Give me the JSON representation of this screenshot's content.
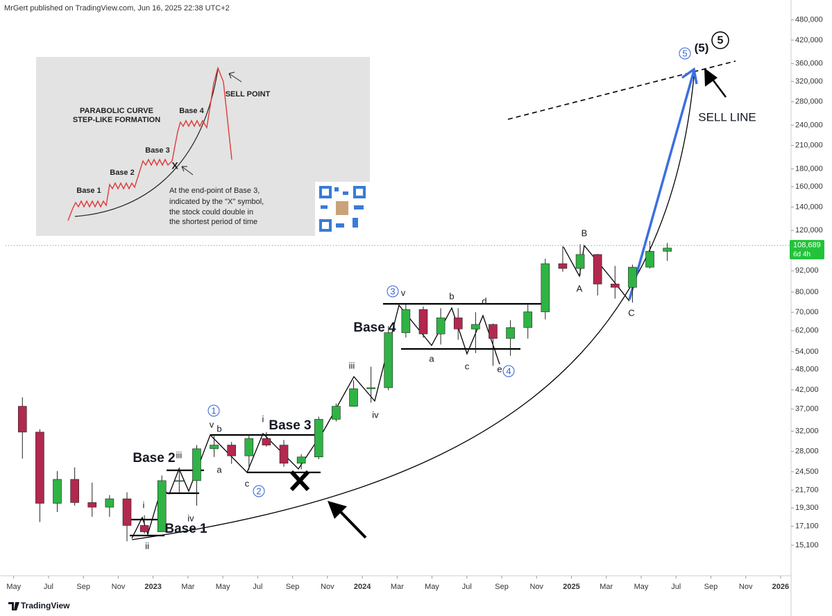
{
  "header": "MrGert published on TradingView.com, Jun 16, 2025 22:38 UTC+2",
  "footer": "TradingView",
  "chart_data": {
    "type": "candlestick",
    "log_scale": true,
    "grid": false,
    "up_color": "#2fb344",
    "down_color": "#b2284e",
    "x": [
      "2022-05",
      "2022-06",
      "2022-07",
      "2022-08",
      "2022-09",
      "2022-10",
      "2022-11",
      "2022-12",
      "2023-01",
      "2023-02",
      "2023-03",
      "2023-04",
      "2023-05",
      "2023-06",
      "2023-07",
      "2023-08",
      "2023-09",
      "2023-10",
      "2023-11",
      "2023-12",
      "2024-01",
      "2024-02",
      "2024-03",
      "2024-04",
      "2024-05",
      "2024-06",
      "2024-07",
      "2024-08",
      "2024-09",
      "2024-10",
      "2024-11",
      "2024-12",
      "2025-01",
      "2025-02",
      "2025-03",
      "2025-04",
      "2025-05",
      "2025-06"
    ],
    "open": [
      37700,
      31800,
      19900,
      23300,
      20000,
      19400,
      20500,
      17200,
      16500,
      23100,
      23100,
      28500,
      29200,
      27200,
      30500,
      29200,
      25900,
      27000,
      34600,
      37700,
      42300,
      42600,
      61200,
      71300,
      60700,
      67500,
      62700,
      64600,
      58900,
      63300,
      70200,
      96400,
      93400,
      102400,
      84300,
      82500,
      94200,
      104600
    ],
    "high": [
      40000,
      32400,
      24600,
      25200,
      22800,
      21000,
      21400,
      18400,
      23900,
      25200,
      29200,
      31000,
      29800,
      31400,
      31800,
      30200,
      27500,
      35200,
      38400,
      44700,
      48900,
      63900,
      73800,
      72700,
      71900,
      71900,
      70000,
      65000,
      66500,
      73600,
      99600,
      108300,
      109600,
      102800,
      95000,
      95800,
      111900,
      110500
    ],
    "low": [
      26700,
      17600,
      18800,
      19600,
      18200,
      18200,
      15500,
      16300,
      16500,
      21400,
      19600,
      27000,
      25800,
      24800,
      28900,
      25300,
      24900,
      26600,
      34100,
      37600,
      38600,
      41900,
      59300,
      59200,
      56600,
      58400,
      53500,
      49200,
      52600,
      58900,
      66800,
      91400,
      89200,
      78200,
      76600,
      74600,
      93400,
      98200
    ],
    "close": [
      31800,
      19900,
      23300,
      20000,
      19400,
      20500,
      17200,
      16500,
      23100,
      23100,
      28500,
      29200,
      27200,
      30500,
      29200,
      25900,
      27000,
      34600,
      37700,
      42300,
      42600,
      61200,
      71300,
      60700,
      67500,
      62700,
      64600,
      58900,
      63300,
      70200,
      96400,
      93400,
      102400,
      84300,
      82500,
      94200,
      104600,
      106800
    ],
    "xlim": [
      "2022-04-17",
      "2026-01-19"
    ],
    "xticks": [
      {
        "value": "2022-05",
        "label": "May"
      },
      {
        "value": "2022-07",
        "label": "Jul"
      },
      {
        "value": "2022-09",
        "label": "Sep"
      },
      {
        "value": "2022-11",
        "label": "Nov"
      },
      {
        "value": "2023-01",
        "label": "2023"
      },
      {
        "value": "2023-03",
        "label": "Mar"
      },
      {
        "value": "2023-05",
        "label": "May"
      },
      {
        "value": "2023-07",
        "label": "Jul"
      },
      {
        "value": "2023-09",
        "label": "Sep"
      },
      {
        "value": "2023-11",
        "label": "Nov"
      },
      {
        "value": "2024-01",
        "label": "2024"
      },
      {
        "value": "2024-03",
        "label": "Mar"
      },
      {
        "value": "2024-05",
        "label": "May"
      },
      {
        "value": "2024-07",
        "label": "Jul"
      },
      {
        "value": "2024-09",
        "label": "Sep"
      },
      {
        "value": "2024-11",
        "label": "Nov"
      },
      {
        "value": "2025-01",
        "label": "2025"
      },
      {
        "value": "2025-03",
        "label": "Mar"
      },
      {
        "value": "2025-05",
        "label": "May"
      },
      {
        "value": "2025-07",
        "label": "Jul"
      },
      {
        "value": "2025-09",
        "label": "Sep"
      },
      {
        "value": "2025-11",
        "label": "Nov"
      },
      {
        "value": "2026-01",
        "label": "2026"
      }
    ],
    "ylim": [
      12350,
      547000
    ],
    "yticks": [
      {
        "value": 480000,
        "label": "480,000"
      },
      {
        "value": 420000,
        "label": "420,000"
      },
      {
        "value": 360000,
        "label": "360,000"
      },
      {
        "value": 320000,
        "label": "320,000"
      },
      {
        "value": 280000,
        "label": "280,000"
      },
      {
        "value": 240000,
        "label": "240,000"
      },
      {
        "value": 210000,
        "label": "210,000"
      },
      {
        "value": 180000,
        "label": "180,000"
      },
      {
        "value": 160000,
        "label": "160,000"
      },
      {
        "value": 140000,
        "label": "140,000"
      },
      {
        "value": 120000,
        "label": "120,000"
      },
      {
        "value": 92000,
        "label": "92,000"
      },
      {
        "value": 80000,
        "label": "80,000"
      },
      {
        "value": 70000,
        "label": "70,000"
      },
      {
        "value": 62000,
        "label": "62,000"
      },
      {
        "value": 54000,
        "label": "54,000"
      },
      {
        "value": 48000,
        "label": "48,000"
      },
      {
        "value": 42000,
        "label": "42,000"
      },
      {
        "value": 37000,
        "label": "37,000"
      },
      {
        "value": 32000,
        "label": "32,000"
      },
      {
        "value": 28000,
        "label": "28,000"
      },
      {
        "value": 24500,
        "label": "24,500"
      },
      {
        "value": 21700,
        "label": "21,700"
      },
      {
        "value": 19300,
        "label": "19,300"
      },
      {
        "value": 17100,
        "label": "17,100"
      },
      {
        "value": 15100,
        "label": "15,100"
      }
    ],
    "last_price": 108689,
    "last_price_label": "108,689",
    "countdown": "6d 4h",
    "base_labels": [
      "Base 1",
      "Base 2",
      "Base 3",
      "Base 4"
    ],
    "wave_labels": [
      "i",
      "ii",
      "iii",
      "iv",
      "v",
      "b",
      "a",
      "c",
      "i",
      "iii",
      "iv",
      "v",
      "b",
      "a",
      "c",
      "d",
      "e",
      "B",
      "A",
      "C"
    ],
    "circled_labels": [
      "1",
      "2",
      "3",
      "4",
      "5"
    ],
    "final_label": "(5)",
    "final_circled": "5",
    "sell_line": "SELL LINE"
  },
  "inset": {
    "title": [
      "PARABOLIC CURVE",
      "STEP-LIKE FORMATION"
    ],
    "bases": [
      "Base 1",
      "Base 2",
      "Base 3",
      "Base 4"
    ],
    "sell_point": "SELL POINT",
    "x_mark": "X",
    "note": [
      "At the end-point of Base 3,",
      "indicated by the \"X\" symbol,",
      "the stock could double in",
      "the shortest period of time"
    ]
  }
}
